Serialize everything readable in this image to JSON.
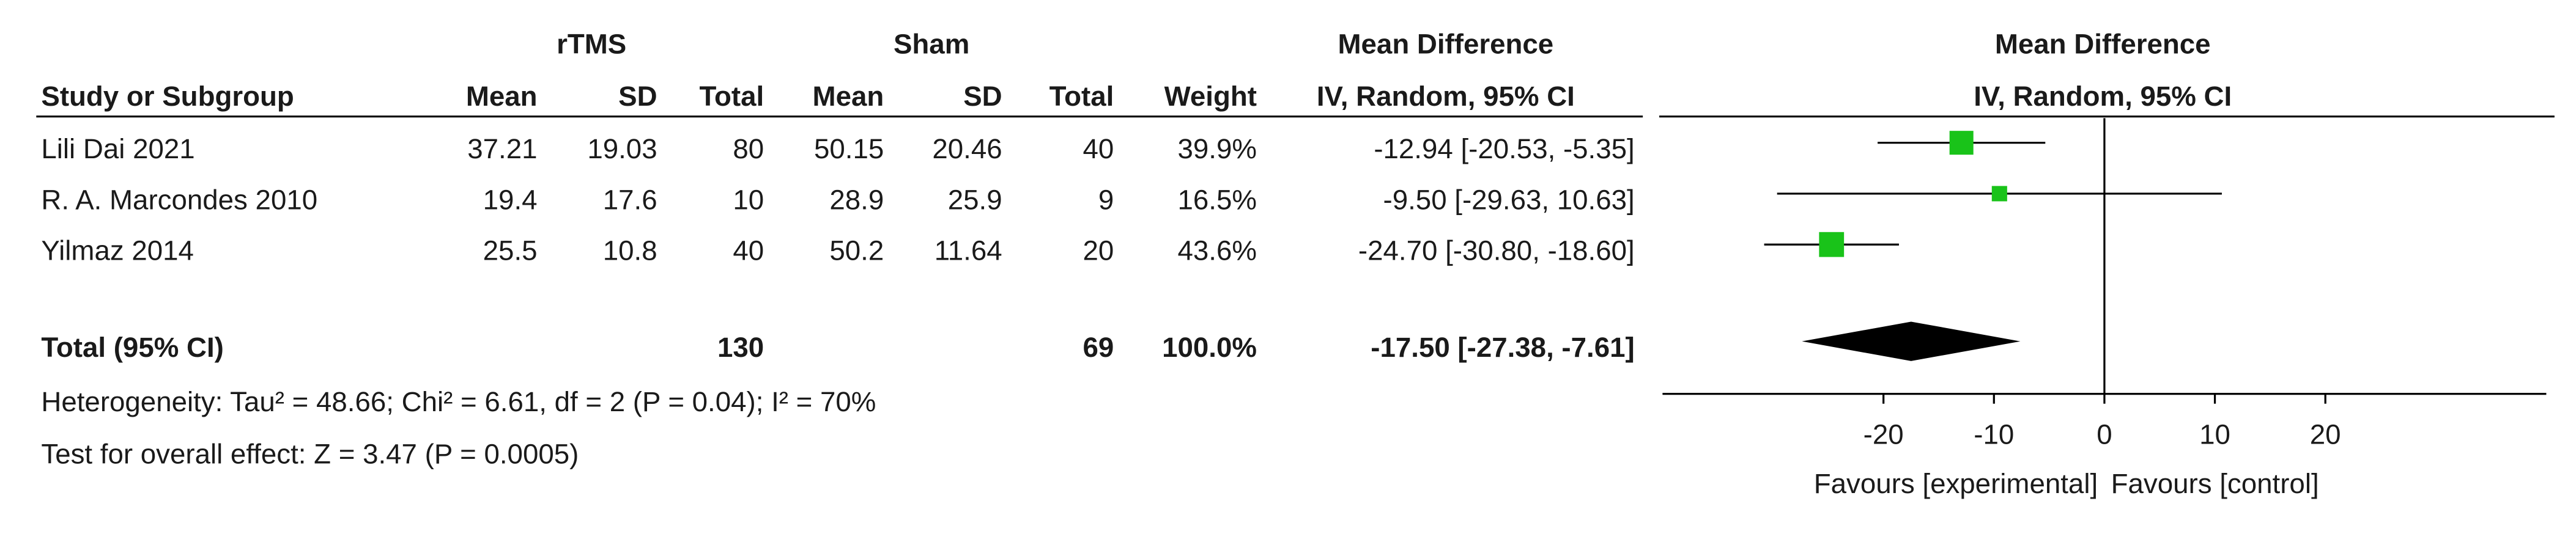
{
  "chart_data": {
    "type": "forest",
    "group_headers": [
      "rTMS",
      "Sham"
    ],
    "md_header": "Mean Difference",
    "md_subheader": "IV, Random, 95% CI",
    "plot_header": "Mean Difference",
    "plot_subheader": "IV, Random, 95% CI",
    "columns": [
      "Study or Subgroup",
      "Mean",
      "SD",
      "Total",
      "Mean",
      "SD",
      "Total",
      "Weight"
    ],
    "studies": [
      {
        "name": "Lili Dai 2021",
        "rtms": [
          37.21,
          19.03,
          80
        ],
        "sham": [
          50.15,
          20.46,
          40
        ],
        "weight": {
          "value": 39.9,
          "label": "39.9%"
        },
        "md": {
          "value": -12.94,
          "lower": -20.53,
          "upper": -5.35,
          "label": "-12.94 [-20.53, -5.35]"
        }
      },
      {
        "name": "R. A. Marcondes 2010",
        "rtms": [
          19.4,
          17.6,
          10
        ],
        "sham": [
          28.9,
          25.9,
          9
        ],
        "weight": {
          "value": 16.5,
          "label": "16.5%"
        },
        "md": {
          "value": -9.5,
          "lower": -29.63,
          "upper": 10.63,
          "label": "-9.50 [-29.63, 10.63]"
        }
      },
      {
        "name": "Yilmaz 2014",
        "rtms": [
          25.5,
          10.8,
          40
        ],
        "sham": [
          50.2,
          11.64,
          20
        ],
        "weight": {
          "value": 43.6,
          "label": "43.6%"
        },
        "md": {
          "value": -24.7,
          "lower": -30.8,
          "upper": -18.6,
          "label": "-24.70 [-30.80, -18.60]"
        }
      }
    ],
    "total": {
      "name": "Total (95% CI)",
      "rtms_total": 130,
      "sham_total": 69,
      "weight": "100.0%",
      "md": {
        "value": -17.5,
        "lower": -27.38,
        "upper": -7.61,
        "label": "-17.50 [-27.38, -7.61]"
      }
    },
    "heterogeneity": "Heterogeneity: Tau² = 48.66; Chi² = 6.61, df = 2 (P = 0.04); I² = 70%",
    "overall_effect": "Test for overall effect: Z = 3.47 (P = 0.0005)",
    "xlim": [
      -40,
      40
    ],
    "xticks": [
      -20,
      -10,
      0,
      10,
      20
    ],
    "xlabel_left": "Favours [experimental]",
    "xlabel_right": "Favours [control]",
    "marker_color": "#19c319"
  }
}
